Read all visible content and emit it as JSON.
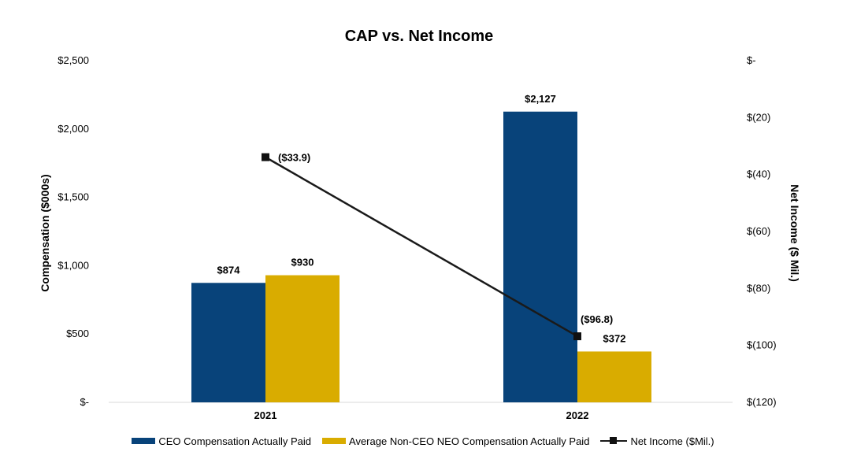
{
  "chart_data": {
    "type": "bar+line",
    "title": "CAP vs. Net Income",
    "categories": [
      "2021",
      "2022"
    ],
    "y_left": {
      "label": "Compensation ($000s)",
      "range": [
        0,
        2500
      ],
      "ticks": [
        0,
        500,
        1000,
        1500,
        2000,
        2500
      ],
      "tick_labels": [
        "$-",
        "$500",
        "$1,000",
        "$1,500",
        "$2,000",
        "$2,500"
      ]
    },
    "y_right": {
      "label": "Net Income ($ Mil.)",
      "range": [
        -120,
        0
      ],
      "ticks": [
        0,
        -20,
        -40,
        -60,
        -80,
        -100,
        -120
      ],
      "tick_labels": [
        "$-",
        "$(20)",
        "$(40)",
        "$(60)",
        "$(80)",
        "$(100)",
        "$(120)"
      ]
    },
    "series": [
      {
        "name": "CEO Compensation Actually Paid",
        "type": "bar",
        "axis": "left",
        "color": "#08437A",
        "values": [
          874,
          2127
        ],
        "labels": [
          "$874",
          "$2,127"
        ]
      },
      {
        "name": "Average Non-CEO NEO Compensation Actually Paid",
        "type": "bar",
        "axis": "left",
        "color": "#D9AC00",
        "values": [
          930,
          372
        ],
        "labels": [
          "$930",
          "$372"
        ]
      },
      {
        "name": "Net Income ($Mil.)",
        "type": "line",
        "axis": "right",
        "color": "#1a1a1a",
        "values": [
          -33.9,
          -96.8
        ],
        "labels": [
          "($33.9)",
          "($96.8)"
        ]
      }
    ],
    "legend_position": "bottom",
    "grid": false
  }
}
